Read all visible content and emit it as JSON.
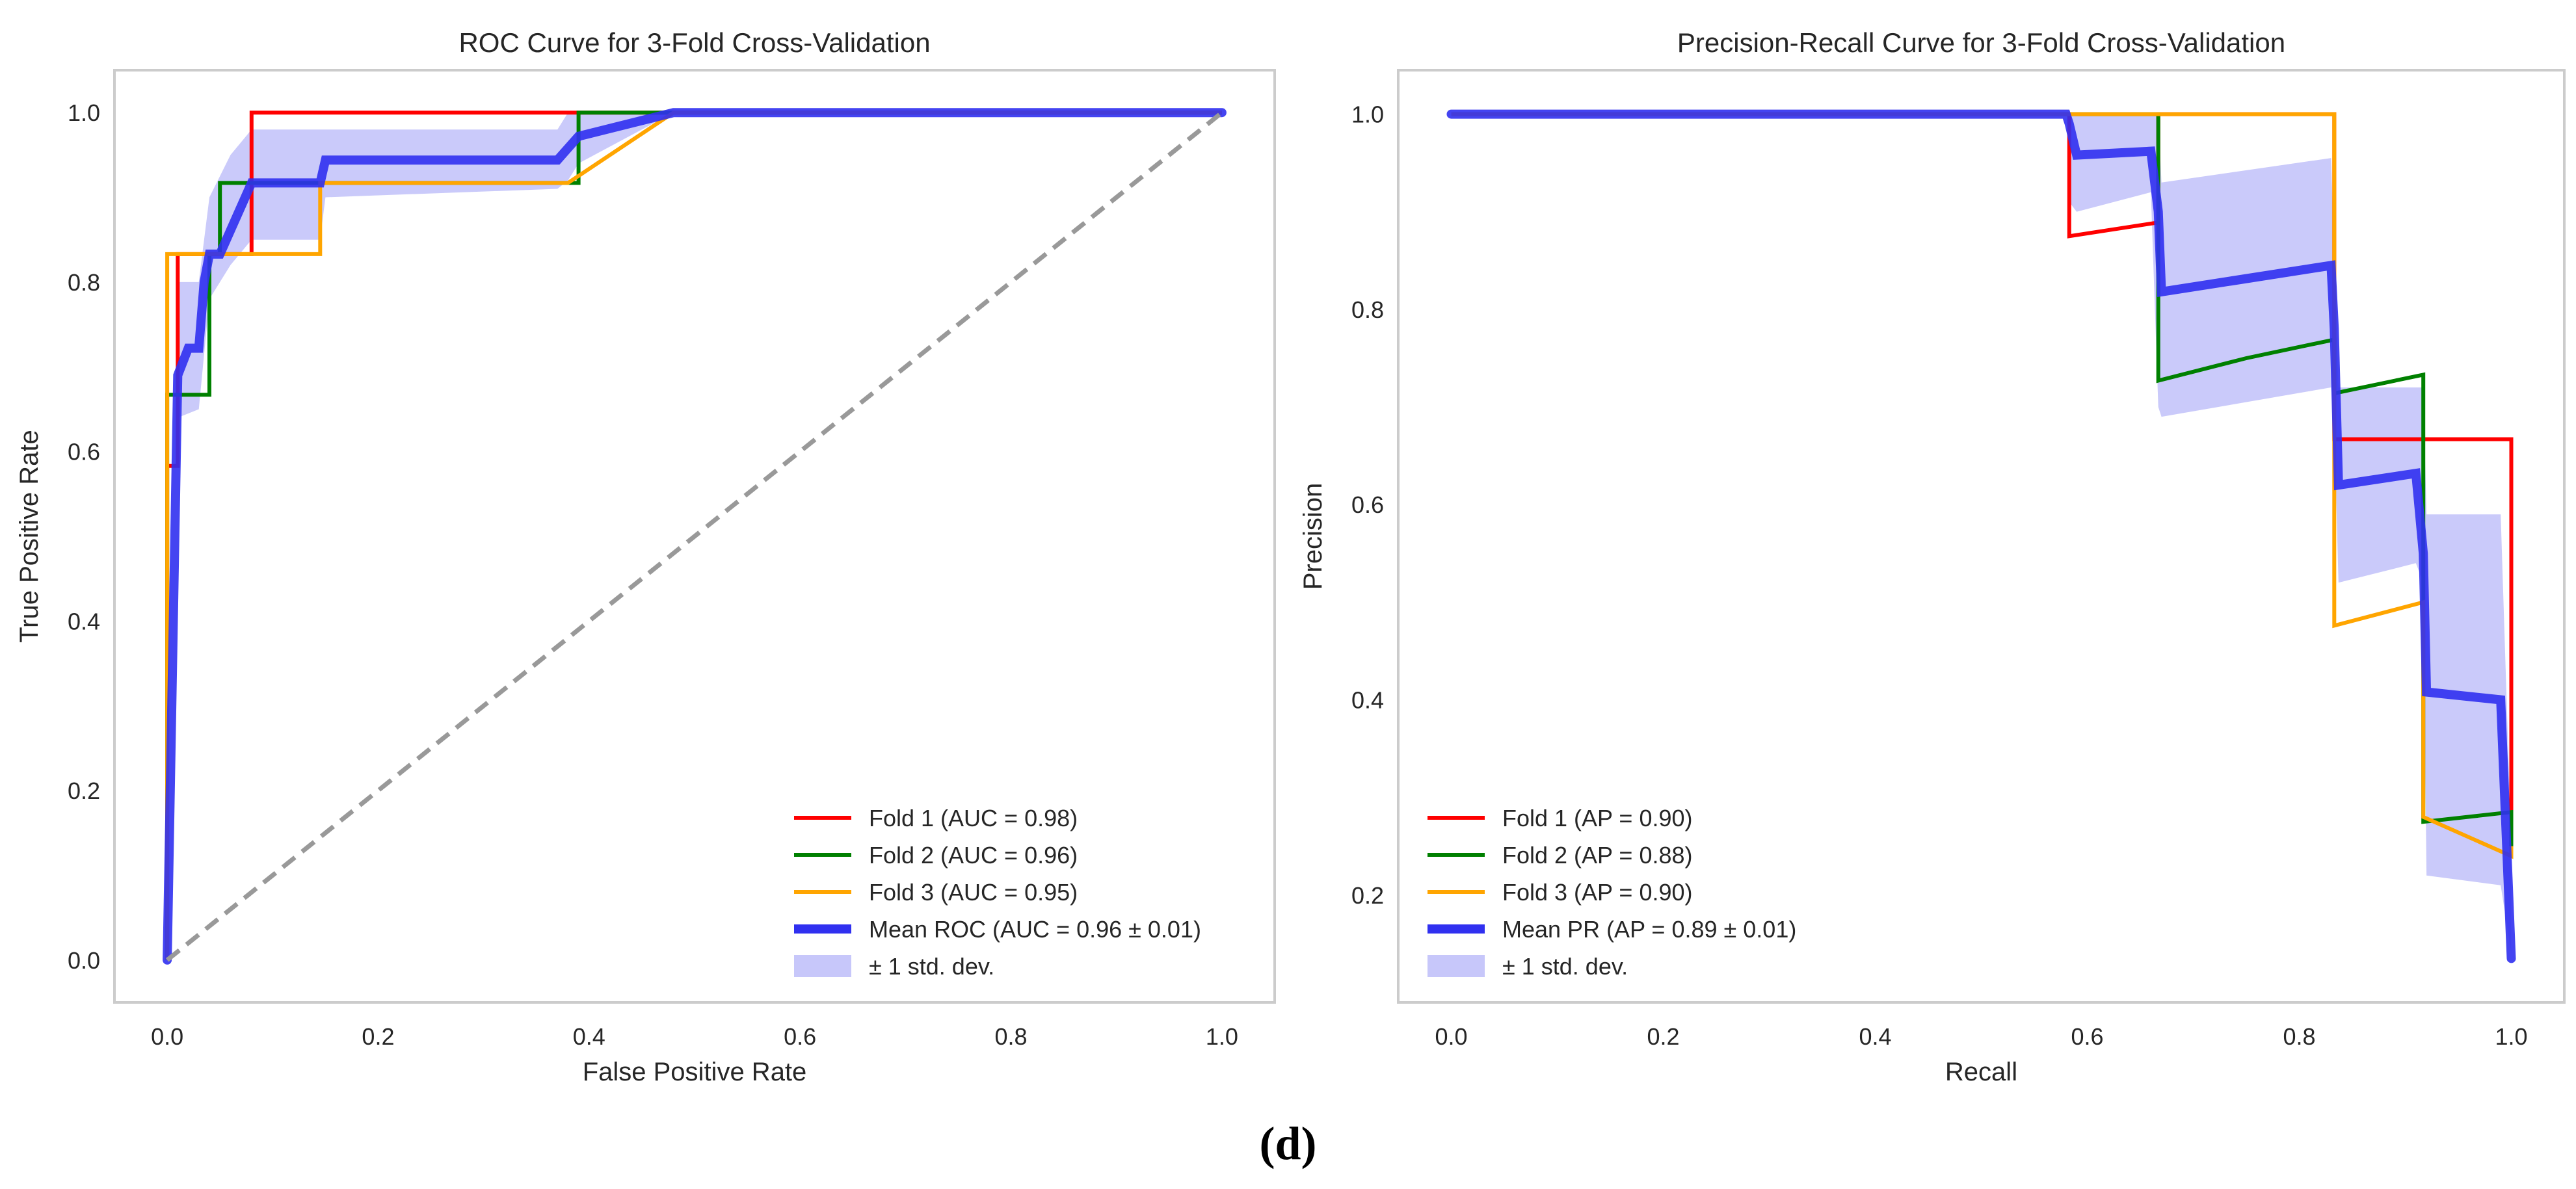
{
  "figure_caption": "(d)",
  "colors": {
    "fold1": "#ff0000",
    "fold2": "#008000",
    "fold3": "#ffa500",
    "mean": "#3030f0",
    "band": "#c7c7fa",
    "chance": "#999999"
  },
  "chart_data": [
    {
      "type": "line",
      "title": "ROC Curve for 3-Fold Cross-Validation",
      "xlabel": "False Positive Rate",
      "ylabel": "True Positive Rate",
      "xlim": [
        -0.05,
        1.05
      ],
      "ylim": [
        -0.05,
        1.05
      ],
      "xticks": [
        0.0,
        0.2,
        0.4,
        0.6,
        0.8,
        1.0
      ],
      "yticks": [
        0.0,
        0.2,
        0.4,
        0.6,
        0.8,
        1.0
      ],
      "xtick_labels": [
        "0.0",
        "0.2",
        "0.4",
        "0.6",
        "0.8",
        "1.0"
      ],
      "ytick_labels": [
        "0.0",
        "0.2",
        "0.4",
        "0.6",
        "0.8",
        "1.0"
      ],
      "grid": false,
      "legend_position": "bottom-right",
      "series": [
        {
          "name": "Fold 1 (AUC = 0.98)",
          "color_key": "fold1",
          "style": "line",
          "x": [
            0,
            0,
            0.01,
            0.01,
            0.06,
            0.08,
            0.08,
            0.38,
            0.38,
            1.0
          ],
          "y": [
            0,
            0.583,
            0.583,
            0.833,
            0.833,
            0.833,
            1.0,
            1.0,
            1.0,
            1.0
          ]
        },
        {
          "name": "Fold 2 (AUC = 0.96)",
          "color_key": "fold2",
          "style": "line",
          "x": [
            0,
            0,
            0.04,
            0.04,
            0.05,
            0.05,
            0.37,
            0.37,
            0.39,
            0.39,
            1.0
          ],
          "y": [
            0,
            0.667,
            0.667,
            0.833,
            0.833,
            0.917,
            0.917,
            0.917,
            0.917,
            1.0,
            1.0
          ]
        },
        {
          "name": "Fold 3 (AUC = 0.95)",
          "color_key": "fold3",
          "style": "line",
          "x": [
            0,
            0,
            0.145,
            0.145,
            0.38,
            0.48,
            1.0
          ],
          "y": [
            0,
            0.833,
            0.833,
            0.917,
            0.917,
            1.0,
            1.0
          ]
        },
        {
          "name": "Mean ROC (AUC = 0.96 ± 0.01)",
          "color_key": "mean",
          "style": "thick",
          "x": [
            0,
            0.01,
            0.02,
            0.03,
            0.035,
            0.04,
            0.05,
            0.08,
            0.145,
            0.15,
            0.37,
            0.38,
            0.39,
            0.48,
            1.0
          ],
          "y": [
            0,
            0.69,
            0.722,
            0.722,
            0.8,
            0.833,
            0.833,
            0.917,
            0.917,
            0.944,
            0.944,
            0.958,
            0.972,
            1.0,
            1.0
          ]
        },
        {
          "name": "± 1 std. dev.",
          "color_key": "band",
          "style": "band",
          "x": [
            0.01,
            0.03,
            0.04,
            0.06,
            0.08,
            0.145,
            0.15,
            0.37,
            0.38,
            0.39,
            0.48
          ],
          "upper": [
            0.8,
            0.8,
            0.9,
            0.95,
            0.98,
            0.98,
            0.98,
            0.98,
            1.0,
            1.0,
            1.0
          ],
          "lower": [
            0.64,
            0.65,
            0.78,
            0.82,
            0.85,
            0.85,
            0.9,
            0.91,
            0.92,
            0.94,
            1.0
          ]
        },
        {
          "name": "",
          "color_key": "chance",
          "style": "dashed",
          "x": [
            0,
            1
          ],
          "y": [
            0,
            1
          ]
        }
      ]
    },
    {
      "type": "line",
      "title": "Precision-Recall Curve for 3-Fold Cross-Validation",
      "xlabel": "Recall",
      "ylabel": "Precision",
      "xlim": [
        -0.05,
        1.05
      ],
      "ylim": [
        0.09,
        1.045
      ],
      "xticks": [
        0.0,
        0.2,
        0.4,
        0.6,
        0.8,
        1.0
      ],
      "yticks": [
        0.2,
        0.4,
        0.6,
        0.8,
        1.0
      ],
      "xtick_labels": [
        "0.0",
        "0.2",
        "0.4",
        "0.6",
        "0.8",
        "1.0"
      ],
      "ytick_labels": [
        "0.2",
        "0.4",
        "0.6",
        "0.8",
        "1.0"
      ],
      "grid": false,
      "legend_position": "bottom-left",
      "series": [
        {
          "name": "Fold 1 (AP = 0.90)",
          "color_key": "fold1",
          "style": "line",
          "x": [
            0,
            0.583,
            0.583,
            0.667,
            0.667,
            0.833,
            0.833,
            0.917,
            0.917,
            1.0,
            1.0
          ],
          "y": [
            1.0,
            1.0,
            0.875,
            0.889,
            1.0,
            1.0,
            0.667,
            0.667,
            0.667,
            0.667,
            0.25
          ]
        },
        {
          "name": "Fold 2 (AP = 0.88)",
          "color_key": "fold2",
          "style": "line",
          "x": [
            0,
            0.667,
            0.667,
            0.75,
            0.833,
            0.833,
            0.917,
            0.917,
            1.0,
            1.0
          ],
          "y": [
            1.0,
            1.0,
            0.727,
            0.75,
            0.769,
            0.714,
            0.733,
            0.275,
            0.285,
            0.25
          ]
        },
        {
          "name": "Fold 3 (AP = 0.90)",
          "color_key": "fold3",
          "style": "line",
          "x": [
            0,
            0.833,
            0.833,
            0.917,
            0.917,
            1.0,
            1.0
          ],
          "y": [
            1.0,
            1.0,
            0.476,
            0.5,
            0.28,
            0.24,
            0.25
          ]
        },
        {
          "name": "Mean PR (AP = 0.89 ± 0.01)",
          "color_key": "mean",
          "style": "thick",
          "x": [
            0,
            0.58,
            0.583,
            0.59,
            0.66,
            0.667,
            0.67,
            0.83,
            0.833,
            0.837,
            0.91,
            0.917,
            0.92,
            0.99,
            1.0
          ],
          "y": [
            1.0,
            1.0,
            0.99,
            0.958,
            0.962,
            0.9,
            0.818,
            0.845,
            0.78,
            0.62,
            0.632,
            0.55,
            0.408,
            0.4,
            0.135
          ]
        },
        {
          "name": "± 1 std. dev.",
          "color_key": "band",
          "style": "band",
          "x": [
            0.583,
            0.59,
            0.66,
            0.667,
            0.67,
            0.83,
            0.833,
            0.837,
            0.91,
            0.917,
            0.92,
            0.99,
            1.0
          ],
          "upper": [
            1.0,
            1.0,
            1.0,
            1.0,
            0.93,
            0.955,
            0.85,
            0.72,
            0.72,
            0.72,
            0.59,
            0.59,
            0.25
          ],
          "lower": [
            0.91,
            0.9,
            0.92,
            0.7,
            0.69,
            0.72,
            0.68,
            0.52,
            0.54,
            0.52,
            0.22,
            0.21,
            0.14
          ]
        }
      ]
    }
  ]
}
